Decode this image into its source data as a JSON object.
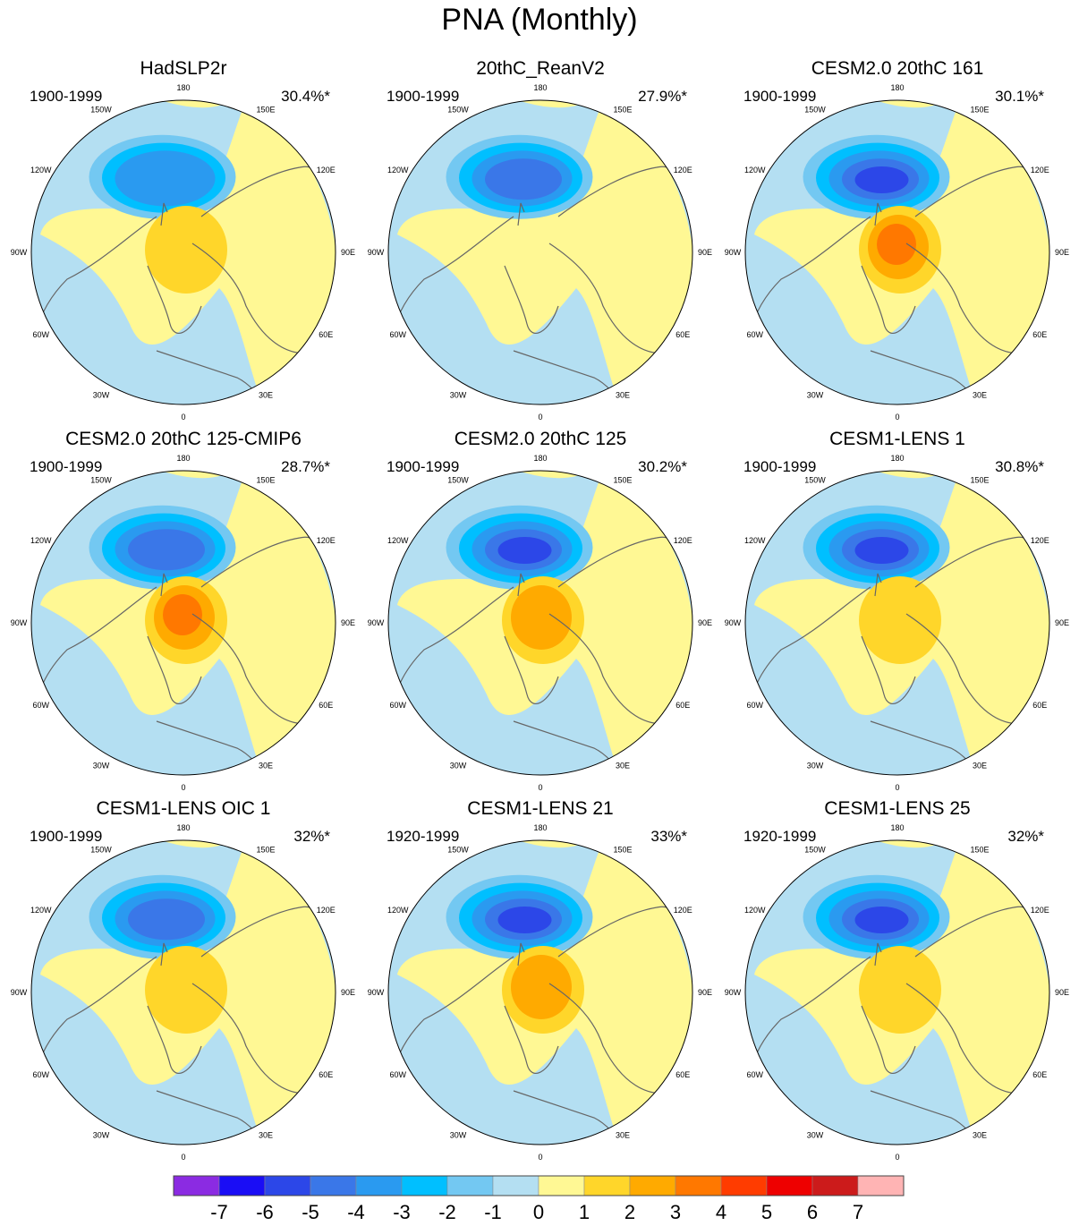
{
  "title": "PNA (Monthly)",
  "longitude_labels": [
    "180",
    "150E",
    "120E",
    "90E",
    "60E",
    "30E",
    "0",
    "30W",
    "60W",
    "90W",
    "120W",
    "150W"
  ],
  "panels": [
    {
      "title": "HadSLP2r",
      "period": "1900-1999",
      "percent": "30.4%*",
      "neg_levels": 4,
      "pos_levels": 2
    },
    {
      "title": "20thC_ReanV2",
      "period": "1900-1999",
      "percent": "27.9%*",
      "neg_levels": 5,
      "pos_levels": 1
    },
    {
      "title": "CESM2.0 20thC 161",
      "period": "1900-1999",
      "percent": "30.1%*",
      "neg_levels": 6,
      "pos_levels": 4
    },
    {
      "title": "CESM2.0 20thC 125-CMIP6",
      "period": "1900-1999",
      "percent": "28.7%*",
      "neg_levels": 5,
      "pos_levels": 4
    },
    {
      "title": "CESM2.0 20thC 125",
      "period": "1900-1999",
      "percent": "30.2%*",
      "neg_levels": 6,
      "pos_levels": 3
    },
    {
      "title": "CESM1-LENS 1",
      "period": "1900-1999",
      "percent": "30.8%*",
      "neg_levels": 6,
      "pos_levels": 2
    },
    {
      "title": "CESM1-LENS OIC 1",
      "period": "1900-1999",
      "percent": "32%*",
      "neg_levels": 5,
      "pos_levels": 2
    },
    {
      "title": "CESM1-LENS 21",
      "period": "1920-1999",
      "percent": "33%*",
      "neg_levels": 6,
      "pos_levels": 3
    },
    {
      "title": "CESM1-LENS 25",
      "period": "1920-1999",
      "percent": "32%*",
      "neg_levels": 6,
      "pos_levels": 2
    }
  ],
  "colorbar": {
    "labels": [
      "-7",
      "-6",
      "-5",
      "-4",
      "-3",
      "-2",
      "-1",
      "0",
      "1",
      "2",
      "3",
      "4",
      "5",
      "6",
      "7"
    ],
    "colors": [
      "#8b2be2",
      "#1a0df5",
      "#2c47e8",
      "#3a77e8",
      "#2a9af0",
      "#00bfff",
      "#73c8f2",
      "#b4dff2",
      "#fff894",
      "#ffd62a",
      "#ffaa00",
      "#ff7800",
      "#ff3c00",
      "#ee0000",
      "#cc1b1b",
      "#ffb4b4"
    ]
  }
}
